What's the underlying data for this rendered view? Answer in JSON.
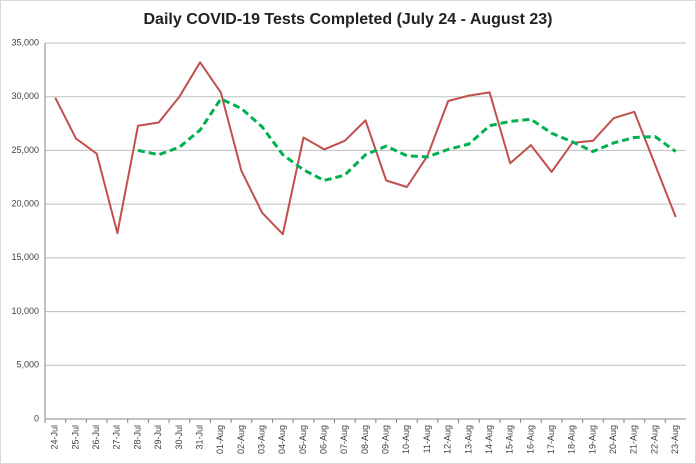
{
  "chart_data": {
    "type": "line",
    "title": "Daily COVID-19 Tests Completed (July 24 - August 23)",
    "categories": [
      "24-Jul",
      "25-Jul",
      "26-Jul",
      "27-Jul",
      "28-Jul",
      "29-Jul",
      "30-Jul",
      "31-Jul",
      "01-Aug",
      "02-Aug",
      "03-Aug",
      "04-Aug",
      "05-Aug",
      "06-Aug",
      "07-Aug",
      "08-Aug",
      "09-Aug",
      "10-Aug",
      "11-Aug",
      "12-Aug",
      "13-Aug",
      "14-Aug",
      "15-Aug",
      "16-Aug",
      "17-Aug",
      "18-Aug",
      "19-Aug",
      "20-Aug",
      "21-Aug",
      "22-Aug",
      "23-Aug"
    ],
    "series": [
      {
        "color": "#c0504d",
        "values": [
          29900,
          26100,
          24700,
          17300,
          27300,
          27600,
          30000,
          33200,
          30400,
          23100,
          19200,
          17200,
          26200,
          25100,
          25900,
          27800,
          22200,
          21600,
          24500,
          29600,
          30100,
          30400,
          23800,
          25500,
          23000,
          25700,
          25900,
          28000,
          28600,
          23700,
          18800
        ]
      },
      {
        "color": "#00b050",
        "dashed": true,
        "values": [
          null,
          null,
          null,
          null,
          25000,
          24600,
          25300,
          26900,
          29800,
          28900,
          27200,
          24600,
          23200,
          22200,
          22700,
          24600,
          25400,
          24500,
          24400,
          25100,
          25600,
          27300,
          27700,
          27900,
          26600,
          25800,
          24900,
          25700,
          26200,
          26300,
          24900
        ]
      }
    ],
    "ylim": [
      0,
      35000
    ],
    "yticks": [
      0,
      {
        "value": 5000,
        "label": "5,000"
      },
      {
        "value": 10000,
        "label": "10,000"
      },
      {
        "value": 15000,
        "label": "15,000"
      },
      {
        "value": 20000,
        "label": "20,000"
      },
      {
        "value": 25000,
        "label": "25,000"
      },
      {
        "value": 30000,
        "label": "30,000"
      },
      {
        "value": 35000,
        "label": "35,000"
      }
    ],
    "grid": true
  }
}
